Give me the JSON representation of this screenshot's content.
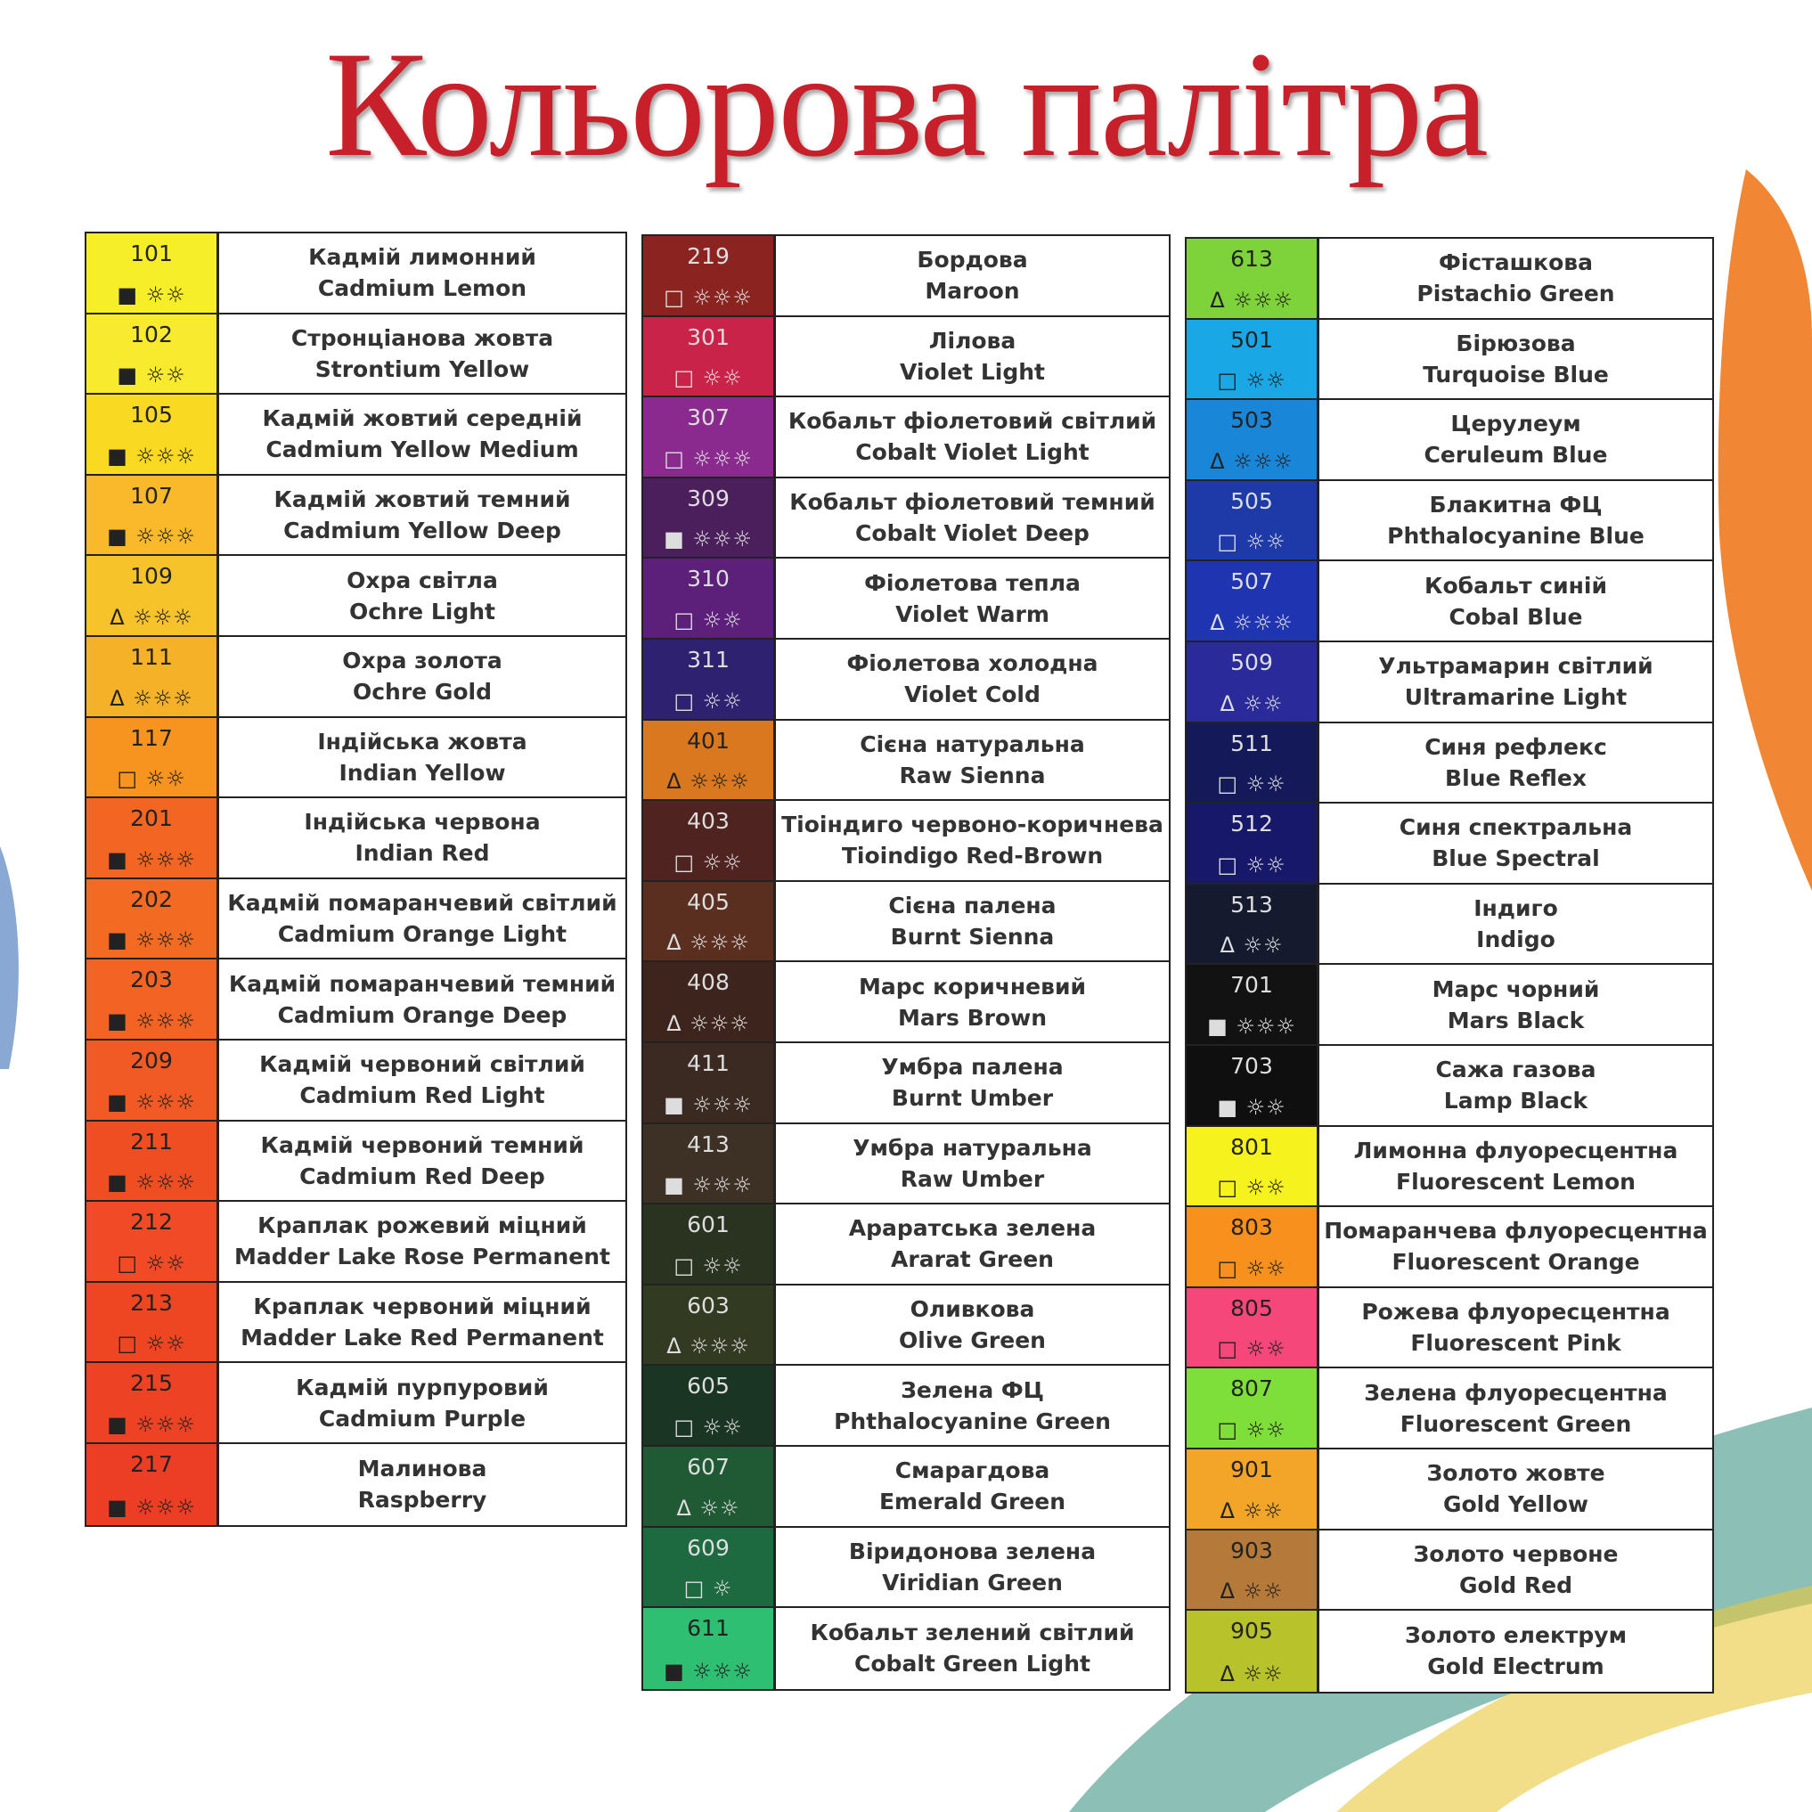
{
  "title": "Кольорова палітра",
  "columns": [
    {
      "rows": [
        {
          "code": "101",
          "opacity": "■",
          "lightfastness": "☼☼",
          "name_uk": "Кадмій лимонний",
          "name_en": "Cadmium Lemon",
          "color": "#f7ee2a"
        },
        {
          "code": "102",
          "opacity": "■",
          "lightfastness": "☼☼",
          "name_uk": "Стронціанова жовта",
          "name_en": "Strontium Yellow",
          "color": "#f8ea2e"
        },
        {
          "code": "105",
          "opacity": "■",
          "lightfastness": "☼☼☼",
          "name_uk": "Кадмій жовтий середній",
          "name_en": "Cadmium Yellow Medium",
          "color": "#f9d921"
        },
        {
          "code": "107",
          "opacity": "■",
          "lightfastness": "☼☼☼",
          "name_uk": "Кадмій жовтий темний",
          "name_en": "Cadmium Yellow Deep",
          "color": "#f9b92b"
        },
        {
          "code": "109",
          "opacity": "Δ",
          "lightfastness": "☼☼☼",
          "name_uk": "Охра світла",
          "name_en": "Ochre Light",
          "color": "#f6c42a"
        },
        {
          "code": "111",
          "opacity": "Δ",
          "lightfastness": "☼☼☼",
          "name_uk": "Охра золота",
          "name_en": "Ochre Gold",
          "color": "#f5b228"
        },
        {
          "code": "117",
          "opacity": "□",
          "lightfastness": "☼☼",
          "name_uk": "Індійська жовта",
          "name_en": "Indian Yellow",
          "color": "#f7941f"
        },
        {
          "code": "201",
          "opacity": "■",
          "lightfastness": "☼☼☼",
          "name_uk": "Індійська червона",
          "name_en": "Indian Red",
          "color": "#f26522"
        },
        {
          "code": "202",
          "opacity": "■",
          "lightfastness": "☼☼☼",
          "name_uk": "Кадмій помаранчевий світлий",
          "name_en": "Cadmium Orange Light",
          "color": "#f36a22"
        },
        {
          "code": "203",
          "opacity": "■",
          "lightfastness": "☼☼☼",
          "name_uk": "Кадмій помаранчевий темний",
          "name_en": "Cadmium Orange Deep",
          "color": "#f26324"
        },
        {
          "code": "209",
          "opacity": "■",
          "lightfastness": "☼☼☼",
          "name_uk": "Кадмій червоний світлий",
          "name_en": "Cadmium Red Light",
          "color": "#f15a24"
        },
        {
          "code": "211",
          "opacity": "■",
          "lightfastness": "☼☼☼",
          "name_uk": "Кадмій червоний темний",
          "name_en": "Cadmium Red Deep",
          "color": "#ef4e23"
        },
        {
          "code": "212",
          "opacity": "□",
          "lightfastness": "☼☼",
          "name_uk": "Краплак рожевий міцний",
          "name_en": "Madder Lake Rose Permanent",
          "color": "#f04b26"
        },
        {
          "code": "213",
          "opacity": "□",
          "lightfastness": "☼☼",
          "name_uk": "Краплак червоний міцний",
          "name_en": "Madder Lake Red Permanent",
          "color": "#ee4523"
        },
        {
          "code": "215",
          "opacity": "■",
          "lightfastness": "☼☼☼",
          "name_uk": "Кадмій пурпуровий",
          "name_en": "Cadmium Purple",
          "color": "#ee4224"
        },
        {
          "code": "217",
          "opacity": "■",
          "lightfastness": "☼☼☼",
          "name_uk": "Малинова",
          "name_en": "Raspberry",
          "color": "#ec3d25"
        }
      ]
    },
    {
      "rows": [
        {
          "code": "219",
          "opacity": "□",
          "lightfastness": "☼☼☼",
          "name_uk": "Бордова",
          "name_en": "Maroon",
          "color": "#8b2421"
        },
        {
          "code": "301",
          "opacity": "□",
          "lightfastness": "☼☼",
          "name_uk": "Лілова",
          "name_en": "Violet Light",
          "color": "#c9234a"
        },
        {
          "code": "307",
          "opacity": "□",
          "lightfastness": "☼☼☼",
          "name_uk": "Кобальт фіолетовий світлий",
          "name_en": "Cobalt Violet Light",
          "color": "#8a2a8e"
        },
        {
          "code": "309",
          "opacity": "■",
          "lightfastness": "☼☼☼",
          "name_uk": "Кобальт фіолетовий темний",
          "name_en": "Cobalt Violet Deep",
          "color": "#4a1f5c"
        },
        {
          "code": "310",
          "opacity": "□",
          "lightfastness": "☼☼",
          "name_uk": "Фіолетова тепла",
          "name_en": "Violet Warm",
          "color": "#5c1f7a"
        },
        {
          "code": "311",
          "opacity": "□",
          "lightfastness": "☼☼",
          "name_uk": "Фіолетова холодна",
          "name_en": "Violet Cold",
          "color": "#2e2270"
        },
        {
          "code": "401",
          "opacity": "Δ",
          "lightfastness": "☼☼☼",
          "name_uk": "Сієна натуральна",
          "name_en": "Raw Sienna",
          "color": "#d9781f"
        },
        {
          "code": "403",
          "opacity": "□",
          "lightfastness": "☼☼",
          "name_uk": "Тіоіндиго червоно-коричнева",
          "name_en": "Tioindigo Red-Brown",
          "color": "#4f2320"
        },
        {
          "code": "405",
          "opacity": "Δ",
          "lightfastness": "☼☼☼",
          "name_uk": "Сієна палена",
          "name_en": "Burnt Sienna",
          "color": "#5b2f1f"
        },
        {
          "code": "408",
          "opacity": "Δ",
          "lightfastness": "☼☼☼",
          "name_uk": "Марс коричневий",
          "name_en": "Mars Brown",
          "color": "#3d241c"
        },
        {
          "code": "411",
          "opacity": "■",
          "lightfastness": "☼☼☼",
          "name_uk": "Умбра палена",
          "name_en": "Burnt Umber",
          "color": "#3a2a22"
        },
        {
          "code": "413",
          "opacity": "■",
          "lightfastness": "☼☼☼",
          "name_uk": "Умбра натуральна",
          "name_en": "Raw Umber",
          "color": "#3d3024"
        },
        {
          "code": "601",
          "opacity": "□",
          "lightfastness": "☼☼",
          "name_uk": "Араратська зелена",
          "name_en": "Ararat Green",
          "color": "#2a3320"
        },
        {
          "code": "603",
          "opacity": "Δ",
          "lightfastness": "☼☼☼",
          "name_uk": "Оливкова",
          "name_en": "Olive Green",
          "color": "#333a22"
        },
        {
          "code": "605",
          "opacity": "□",
          "lightfastness": "☼☼",
          "name_uk": "Зелена ФЦ",
          "name_en": "Phthalocyanine Green",
          "color": "#1b3524"
        },
        {
          "code": "607",
          "opacity": "Δ",
          "lightfastness": "☼☼",
          "name_uk": "Смарагдова",
          "name_en": "Emerald Green",
          "color": "#1f5a34"
        },
        {
          "code": "609",
          "opacity": "□",
          "lightfastness": "☼",
          "name_uk": "Віридонова зелена",
          "name_en": "Viridian Green",
          "color": "#1e6a40"
        },
        {
          "code": "611",
          "opacity": "■",
          "lightfastness": "☼☼☼",
          "name_uk": "Кобальт зелений світлий",
          "name_en": "Cobalt Green Light",
          "color": "#2fbf72"
        }
      ]
    },
    {
      "rows": [
        {
          "code": "613",
          "opacity": "Δ",
          "lightfastness": "☼☼☼",
          "name_uk": "Фісташкова",
          "name_en": "Pistachio Green",
          "color": "#7ed33a"
        },
        {
          "code": "501",
          "opacity": "□",
          "lightfastness": "☼☼",
          "name_uk": "Бірюзова",
          "name_en": "Turquoise Blue",
          "color": "#1aa7e6"
        },
        {
          "code": "503",
          "opacity": "Δ",
          "lightfastness": "☼☼☼",
          "name_uk": "Церулеум",
          "name_en": "Ceruleum Blue",
          "color": "#1a86d8"
        },
        {
          "code": "505",
          "opacity": "□",
          "lightfastness": "☼☼",
          "name_uk": "Блакитна ФЦ",
          "name_en": "Phthalocyanine Blue",
          "color": "#1d3aa8"
        },
        {
          "code": "507",
          "opacity": "Δ",
          "lightfastness": "☼☼☼",
          "name_uk": "Кобальт синій",
          "name_en": "Cobal Blue",
          "color": "#1f34b0"
        },
        {
          "code": "509",
          "opacity": "Δ",
          "lightfastness": "☼☼",
          "name_uk": "Ультрамарин світлий",
          "name_en": "Ultramarine Light",
          "color": "#2a2a9a"
        },
        {
          "code": "511",
          "opacity": "□",
          "lightfastness": "☼☼",
          "name_uk": "Синя рефлекс",
          "name_en": "Blue Reflex",
          "color": "#14195a"
        },
        {
          "code": "512",
          "opacity": "□",
          "lightfastness": "☼☼",
          "name_uk": "Синя спектральна",
          "name_en": "Blue Spectral",
          "color": "#18186a"
        },
        {
          "code": "513",
          "opacity": "Δ",
          "lightfastness": "☼☼",
          "name_uk": "Індиго",
          "name_en": "Indigo",
          "color": "#151a2e"
        },
        {
          "code": "701",
          "opacity": "■",
          "lightfastness": "☼☼☼",
          "name_uk": "Марс чорний",
          "name_en": "Mars Black",
          "color": "#121212"
        },
        {
          "code": "703",
          "opacity": "■",
          "lightfastness": "☼☼",
          "name_uk": "Сажа газова",
          "name_en": "Lamp Black",
          "color": "#0f0f0f"
        },
        {
          "code": "801",
          "opacity": "□",
          "lightfastness": "☼☼",
          "name_uk": "Лимонна флуоресцентна",
          "name_en": "Fluorescent Lemon",
          "color": "#f5f21e"
        },
        {
          "code": "803",
          "opacity": "□",
          "lightfastness": "☼☼",
          "name_uk": "Помаранчева флуоресцентна",
          "name_en": "Fluorescent Orange",
          "color": "#f8901e"
        },
        {
          "code": "805",
          "opacity": "□",
          "lightfastness": "☼☼",
          "name_uk": "Рожева флуоресцентна",
          "name_en": "Fluorescent Pink",
          "color": "#f5477a"
        },
        {
          "code": "807",
          "opacity": "□",
          "lightfastness": "☼☼",
          "name_uk": "Зелена флуоресцентна",
          "name_en": "Fluorescent Green",
          "color": "#7ede3a"
        },
        {
          "code": "901",
          "opacity": "Δ",
          "lightfastness": "☼☼",
          "name_uk": "Золото жовте",
          "name_en": "Gold Yellow",
          "color": "#f3a52a"
        },
        {
          "code": "903",
          "opacity": "Δ",
          "lightfastness": "☼☼",
          "name_uk": "Золото червоне",
          "name_en": "Gold Red",
          "color": "#b57a3a"
        },
        {
          "code": "905",
          "opacity": "Δ",
          "lightfastness": "☼☼",
          "name_uk": "Золото електрум",
          "name_en": "Gold Electrum",
          "color": "#b8c22a"
        }
      ]
    }
  ]
}
